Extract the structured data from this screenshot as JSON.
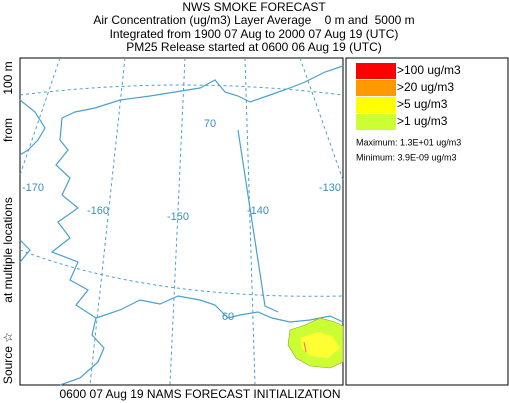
{
  "header": {
    "title": "NWS SMOKE FORECAST",
    "lines": [
      "Air Concentration (ug/m3) Layer Average    0 m and  5000 m",
      "Integrated from 1900 07 Aug to 2000 07 Aug 19 (UTC)",
      "PM25 Release started at 0600 06 Aug 19 (UTC)"
    ]
  },
  "side_label": [
    "Source ☆",
    "at multiple locations",
    "from",
    "100 m"
  ],
  "map": {
    "grid_labels": [
      "70",
      "-170",
      "-130",
      "-160",
      "-150",
      "-140",
      "60"
    ]
  },
  "legend": {
    "entries": [
      {
        "label": ">100 ug/m3",
        "color": "#ff0000"
      },
      {
        "label": ">20 ug/m3",
        "color": "#ff9900"
      },
      {
        "label": ">5 ug/m3",
        "color": "#ffff00"
      },
      {
        "label": ">1 ug/m3",
        "color": "#ccff33"
      }
    ],
    "maximum": "Maximum: 1.3E+01 ug/m3",
    "minimum": "Minimum: 3.9E-09 ug/m3"
  },
  "footer": "0600 07 Aug 19 NAMS FORECAST INITIALIZATION"
}
